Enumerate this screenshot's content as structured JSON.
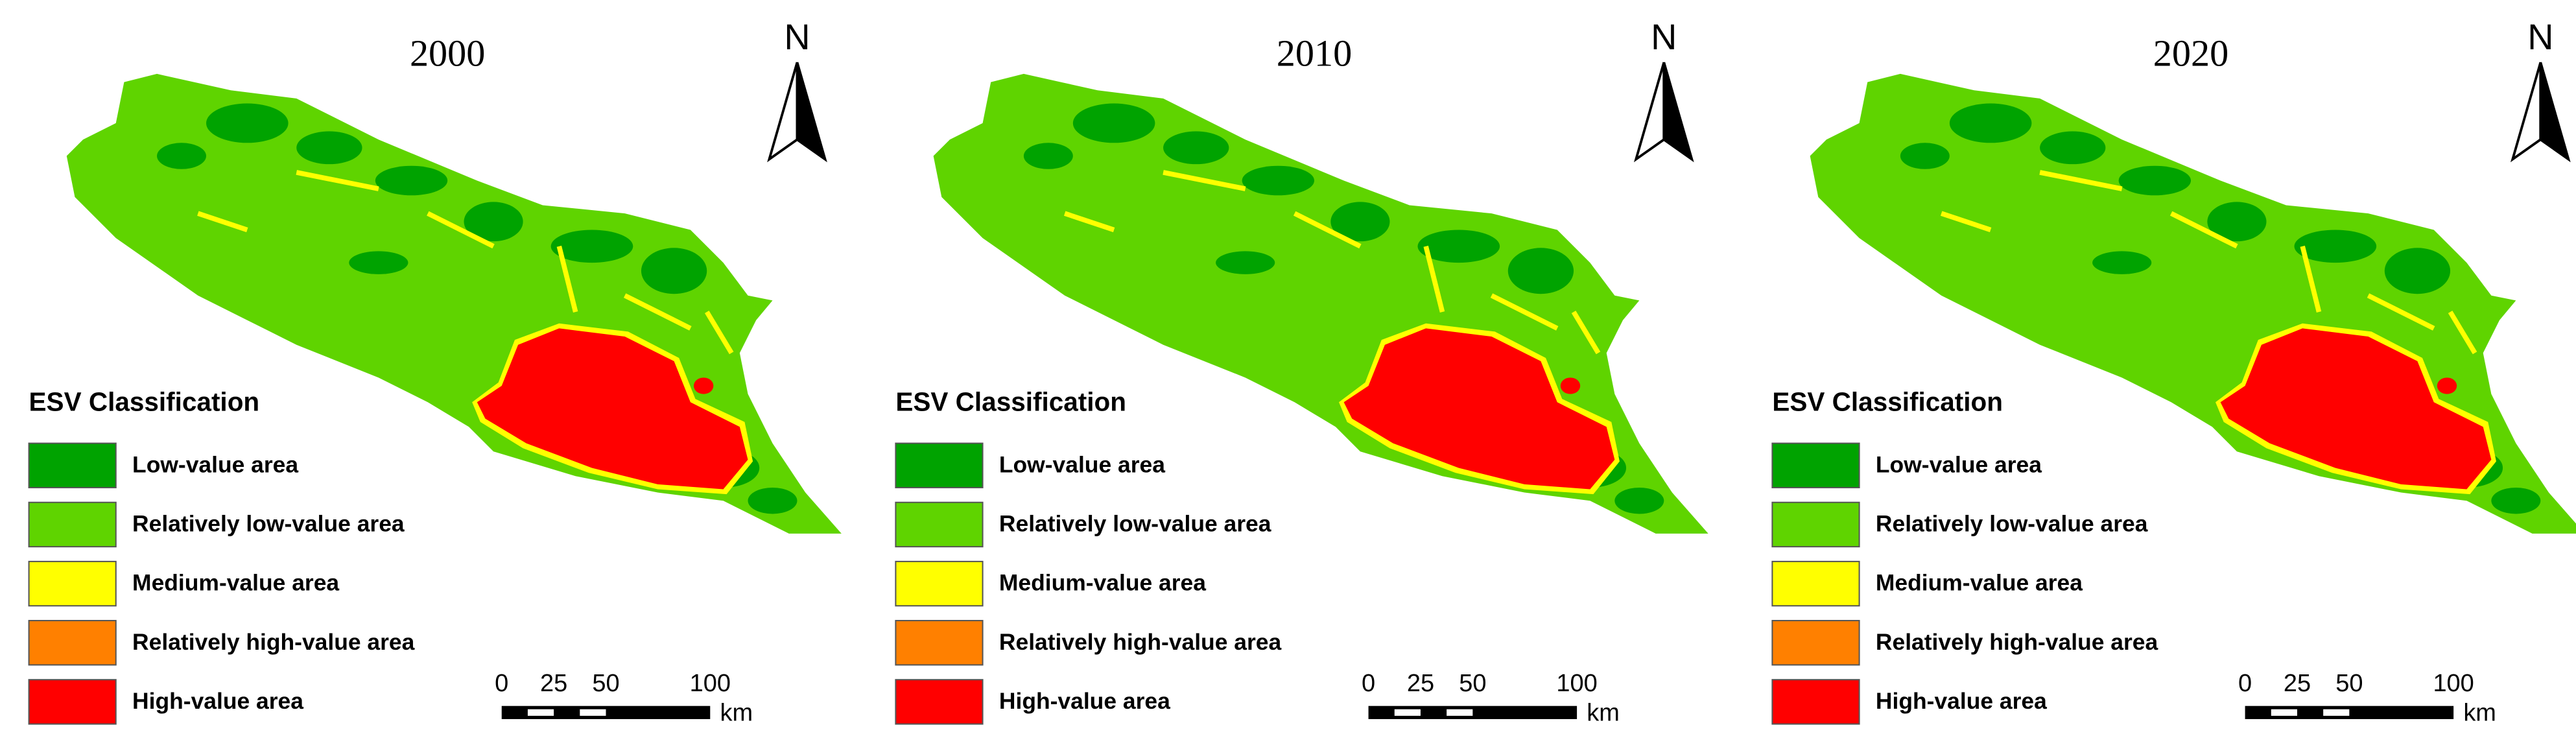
{
  "panels": [
    {
      "title": "2000",
      "north": "N",
      "legend_title": "ESV Classification",
      "legend": [
        {
          "label": "Low-value area",
          "color": "#00a300"
        },
        {
          "label": "Relatively low-value area",
          "color": "#5fd400"
        },
        {
          "label": "Medium-value area",
          "color": "#ffff00"
        },
        {
          "label": "Relatively high-value area",
          "color": "#ff8000"
        },
        {
          "label": "High-value area",
          "color": "#ff0000"
        }
      ],
      "scale_ticks": [
        0,
        25,
        50,
        100
      ],
      "scale_unit": "km"
    },
    {
      "title": "2010",
      "north": "N",
      "legend_title": "ESV Classification",
      "legend": [
        {
          "label": "Low-value area",
          "color": "#00a300"
        },
        {
          "label": "Relatively low-value area",
          "color": "#5fd400"
        },
        {
          "label": "Medium-value area",
          "color": "#ffff00"
        },
        {
          "label": "Relatively high-value area",
          "color": "#ff8000"
        },
        {
          "label": "High-value area",
          "color": "#ff0000"
        }
      ],
      "scale_ticks": [
        0,
        25,
        50,
        100
      ],
      "scale_unit": "km"
    },
    {
      "title": "2020",
      "north": "N",
      "legend_title": "ESV Classification",
      "legend": [
        {
          "label": "Low-value area",
          "color": "#00a300"
        },
        {
          "label": "Relatively low-value area",
          "color": "#5fd400"
        },
        {
          "label": "Medium-value area",
          "color": "#ffff00"
        },
        {
          "label": "Relatively high-value area",
          "color": "#ff8000"
        },
        {
          "label": "High-value area",
          "color": "#ff0000"
        }
      ],
      "scale_ticks": [
        0,
        25,
        50,
        100
      ],
      "scale_unit": "km"
    }
  ]
}
